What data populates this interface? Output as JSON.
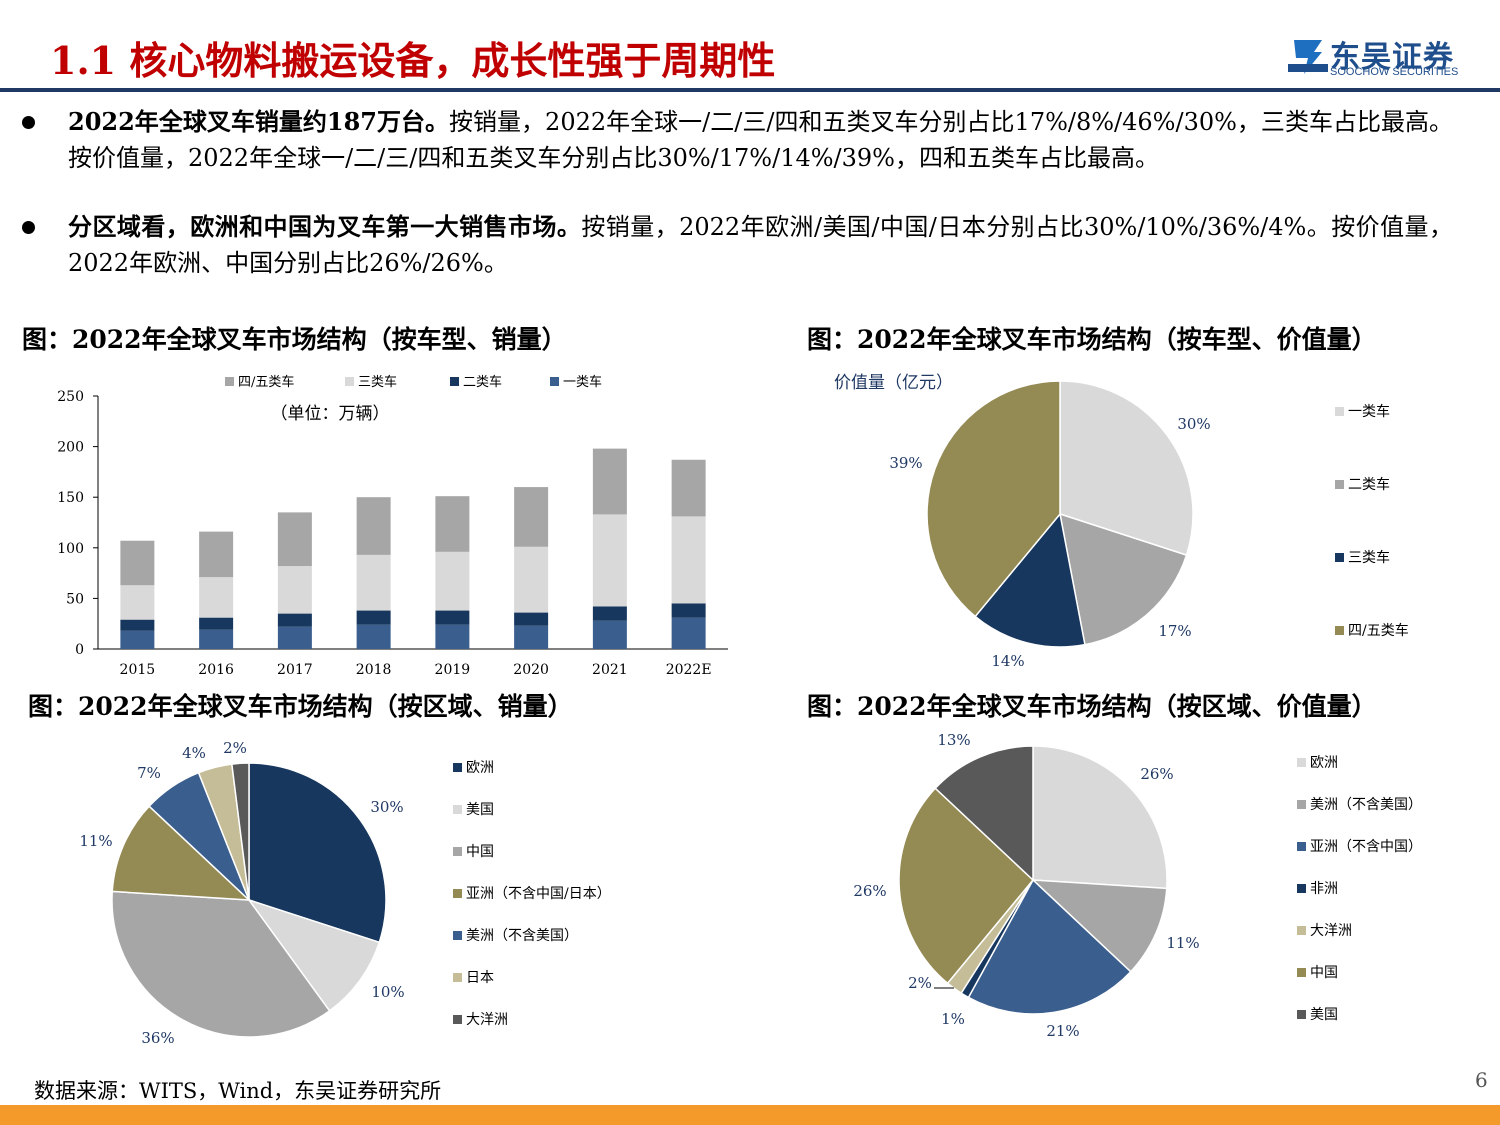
{
  "header": {
    "title": "1.1 核心物料搬运设备，成长性强于周期性",
    "logo_cn": "东吴证券",
    "logo_en": "SOOCHOW SECURITIES",
    "logo_mark": "SCS"
  },
  "bullets": [
    {
      "bold": "2022年全球叉车销量约187万台。",
      "rest": "按销量，2022年全球一/二/三/四和五类叉车分别占比17%/8%/46%/30%，三类车占比最高。按价值量，2022年全球一/二/三/四和五类叉车分别占比30%/17%/14%/39%，四和五类车占比最高。"
    },
    {
      "bold": "分区域看，欧洲和中国为叉车第一大销售市场。",
      "rest": "按销量，2022年欧洲/美国/中国/日本分别占比30%/10%/36%/4%。按价值量，2022年欧洲、中国分别占比26%/26%。"
    }
  ],
  "figure_titles": [
    "图：2022年全球叉车市场结构（按车型、销量）",
    "图：2022年全球叉车市场结构（按车型、价值量）",
    "图：2022年全球叉车市场结构（按区域、销量）",
    "图：2022年全球叉车市场结构（按区域、价值量）"
  ],
  "source": "数据来源：WITS，Wind，东吴证券研究所",
  "page_number": "6",
  "colors": {
    "title_red": "#c00000",
    "navy": "#1f3864",
    "dark_navy": "#17375e",
    "mid_blue": "#3a5f8f",
    "light_gray": "#d9d9d9",
    "mid_gray": "#a6a6a6",
    "olive": "#948a54",
    "beige": "#c4bd97",
    "dark_gray": "#595959",
    "orange": "#f39a2b"
  },
  "chart_data": [
    {
      "type": "bar",
      "stacked": true,
      "unit_note": "（单位：万辆）",
      "categories": [
        "2015",
        "2016",
        "2017",
        "2018",
        "2019",
        "2020",
        "2021",
        "2022E"
      ],
      "ylim": [
        0,
        250
      ],
      "yticks": [
        0,
        50,
        100,
        150,
        200,
        250
      ],
      "legend_position": "top",
      "legend_order": [
        "四/五类车",
        "三类车",
        "二类车",
        "一类车"
      ],
      "series": [
        {
          "name": "一类车",
          "color": "#3a5f8f",
          "values": [
            18,
            19,
            22,
            24,
            24,
            23,
            28,
            31
          ]
        },
        {
          "name": "二类车",
          "color": "#17375e",
          "values": [
            11,
            12,
            13,
            14,
            14,
            13,
            14,
            14
          ]
        },
        {
          "name": "三类车",
          "color": "#d9d9d9",
          "values": [
            34,
            40,
            47,
            55,
            58,
            65,
            91,
            86
          ]
        },
        {
          "name": "四/五类车",
          "color": "#a6a6a6",
          "values": [
            44,
            45,
            53,
            57,
            55,
            59,
            65,
            56
          ]
        }
      ]
    },
    {
      "type": "pie",
      "axis_label": "价值量（亿元）",
      "legend_position": "right",
      "slices": [
        {
          "name": "一类车",
          "value": 30,
          "label": "30%",
          "color": "#d9d9d9"
        },
        {
          "name": "二类车",
          "value": 17,
          "label": "17%",
          "color": "#a6a6a6"
        },
        {
          "name": "三类车",
          "value": 14,
          "label": "14%",
          "color": "#17375e"
        },
        {
          "name": "四/五类车",
          "value": 39,
          "label": "39%",
          "color": "#948a54"
        }
      ]
    },
    {
      "type": "pie",
      "legend_position": "right",
      "slices": [
        {
          "name": "欧洲",
          "value": 30,
          "label": "30%",
          "color": "#17375e"
        },
        {
          "name": "美国",
          "value": 10,
          "label": "10%",
          "color": "#d9d9d9"
        },
        {
          "name": "中国",
          "value": 36,
          "label": "36%",
          "color": "#a6a6a6"
        },
        {
          "name": "亚洲（不含中国/日本）",
          "value": 11,
          "label": "11%",
          "color": "#948a54"
        },
        {
          "name": "美洲（不含美国）",
          "value": 7,
          "label": "7%",
          "color": "#3a5f8f"
        },
        {
          "name": "日本",
          "value": 4,
          "label": "4%",
          "color": "#c4bd97"
        },
        {
          "name": "大洋洲",
          "value": 2,
          "label": "2%",
          "color": "#595959"
        }
      ]
    },
    {
      "type": "pie",
      "legend_position": "right",
      "slices": [
        {
          "name": "欧洲",
          "value": 26,
          "label": "26%",
          "color": "#d9d9d9"
        },
        {
          "name": "美洲（不含美国）",
          "value": 11,
          "label": "11%",
          "color": "#a6a6a6"
        },
        {
          "name": "亚洲（不含中国）",
          "value": 21,
          "label": "21%",
          "color": "#3a5f8f"
        },
        {
          "name": "非洲",
          "value": 1,
          "label": "1%",
          "color": "#17375e"
        },
        {
          "name": "大洋洲",
          "value": 2,
          "label": "2%",
          "color": "#c4bd97"
        },
        {
          "name": "中国",
          "value": 26,
          "label": "26%",
          "color": "#948a54"
        },
        {
          "name": "美国",
          "value": 13,
          "label": "13%",
          "color": "#595959"
        }
      ]
    }
  ]
}
